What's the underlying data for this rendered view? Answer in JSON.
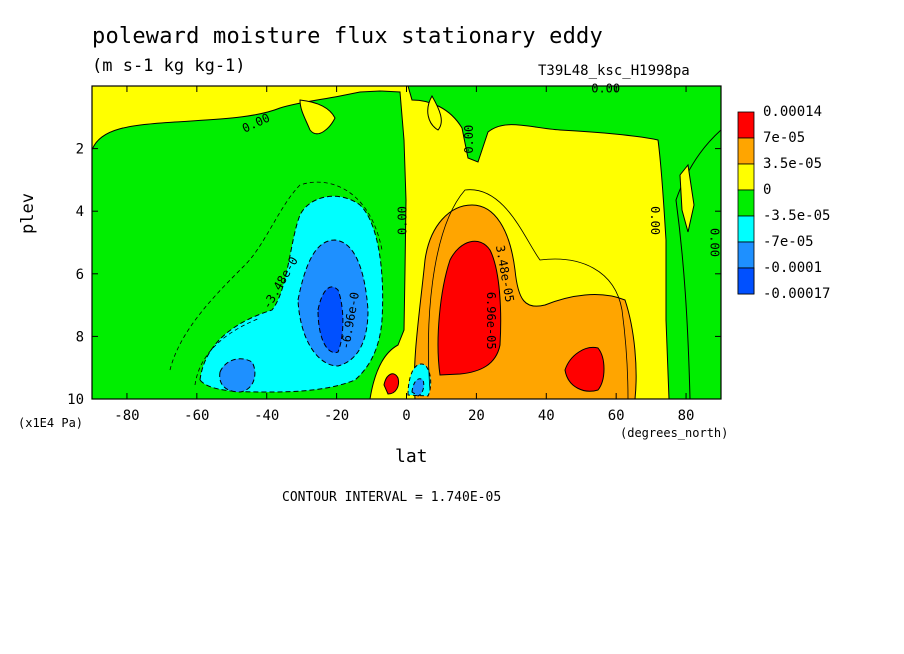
{
  "chart_data": {
    "type": "heatmap",
    "title": "poleward moisture flux stationary eddy",
    "units": "(m s-1 kg kg-1)",
    "run_label": "T39L48_ksc_H1998pa",
    "xlabel": "lat",
    "ylabel": "plev",
    "x_units": "(degrees_north)",
    "y_units": "(x1E4 Pa)",
    "xlim": [
      -90,
      90
    ],
    "ylim": [
      10,
      0
    ],
    "x_ticks": [
      -80,
      -60,
      -40,
      -20,
      0,
      20,
      40,
      60,
      80
    ],
    "x_tick_labels": [
      "-80",
      "-60",
      "-40",
      "-20",
      "0",
      "20",
      "40",
      "60",
      "80"
    ],
    "y_ticks": [
      2,
      4,
      6,
      8,
      10
    ],
    "y_tick_labels": [
      "2",
      "4",
      "6",
      "8",
      "10"
    ],
    "contour_interval_text": "CONTOUR INTERVAL = 1.740E-05",
    "legend": [
      {
        "label": "0.00014",
        "color": "#ff0000"
      },
      {
        "label": "7e-05",
        "color": "#ffa500"
      },
      {
        "label": "3.5e-05",
        "color": "#ffff00"
      },
      {
        "label": "0",
        "color": "#00ee00"
      },
      {
        "label": "-3.5e-05",
        "color": "#00ffff"
      },
      {
        "label": "-7e-05",
        "color": "#1e90ff"
      },
      {
        "label": "-0.0001",
        "color": "#0050ff"
      },
      {
        "label": "-0.00017",
        "color": ""
      }
    ],
    "contour_labels": [
      {
        "text": "0.00",
        "lat": -43,
        "plev": 1.2,
        "angle": -25
      },
      {
        "text": "0.00",
        "lat": 57,
        "plev": 0.1,
        "angle": 0
      },
      {
        "text": "0.00",
        "lat": 18,
        "plev": 1.7,
        "angle": -90
      },
      {
        "text": "0.00",
        "lat": -1,
        "plev": 4.3,
        "angle": -90
      },
      {
        "text": "0.00",
        "lat": 71,
        "plev": 4.3,
        "angle": 90
      },
      {
        "text": "0.00",
        "lat": 88,
        "plev": 5.0,
        "angle": 90
      },
      {
        "text": "-3.48e-0",
        "lat": -36,
        "plev": 6.3,
        "angle": -60
      },
      {
        "text": "-6.96e-0",
        "lat": -16,
        "plev": 7.5,
        "angle": -80
      },
      {
        "text": "3.48e-05",
        "lat": 28,
        "plev": 6.0,
        "angle": 80
      },
      {
        "text": "6.96e-05",
        "lat": 24,
        "plev": 7.5,
        "angle": 90
      }
    ]
  }
}
